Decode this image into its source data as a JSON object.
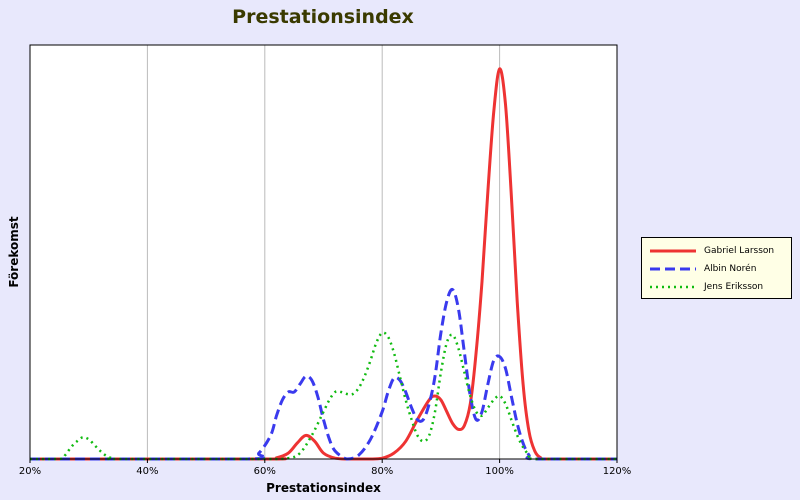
{
  "chart_data": {
    "type": "line",
    "title": "Prestationsindex",
    "xlabel": "Prestationsindex",
    "ylabel": "Förekomst",
    "xlim": [
      20,
      120
    ],
    "ylim": [
      0,
      100
    ],
    "x_ticks": [
      "20%",
      "40%",
      "60%",
      "80%",
      "100%",
      "120%"
    ],
    "grid": "vertical",
    "legend_position": "right",
    "series": [
      {
        "name": "Gabriel Larsson",
        "color": "#ee3333",
        "style": "solid",
        "x": [
          20,
          60,
          62,
          64,
          65.5,
          67,
          68.5,
          70,
          72,
          74,
          76,
          78,
          80,
          82,
          84,
          86,
          88,
          89,
          90,
          91,
          92,
          93,
          94,
          95,
          96,
          97,
          98,
          99,
          100,
          101,
          102,
          103,
          104,
          105,
          106,
          107,
          108,
          120
        ],
        "y": [
          0,
          0,
          0.3,
          1.5,
          4,
          6,
          4.5,
          1.5,
          0.2,
          0,
          0,
          0,
          0.2,
          1.5,
          4.5,
          10,
          15,
          16,
          15,
          12,
          9,
          7.5,
          8.5,
          14,
          27,
          45,
          68,
          88,
          99,
          90,
          67,
          40,
          19,
          7,
          2,
          0.3,
          0,
          0
        ]
      },
      {
        "name": "Albin Norén",
        "color": "#3a3aee",
        "style": "dashed",
        "x": [
          20,
          57,
          59,
          61,
          62,
          63,
          64,
          65,
          66,
          67,
          68,
          69,
          70,
          71,
          72,
          74,
          76,
          78,
          80,
          81,
          82,
          83,
          84,
          85,
          86,
          87,
          88,
          89,
          90,
          91,
          92,
          93,
          94,
          95,
          96,
          97,
          98,
          99,
          100,
          101,
          102,
          103,
          104,
          105,
          106,
          120
        ],
        "y": [
          0,
          0,
          1.5,
          6,
          11,
          15,
          17,
          17,
          19,
          21,
          20,
          16,
          10,
          5,
          2,
          0,
          1,
          5,
          12,
          17,
          20.5,
          20,
          17,
          13,
          10,
          10,
          14,
          21,
          32,
          40,
          43,
          38,
          27,
          16,
          10,
          12,
          19,
          25,
          26,
          23,
          16,
          9,
          4,
          1,
          0,
          0
        ]
      },
      {
        "name": "Jens Eriksson",
        "color": "#11bb11",
        "style": "dotted",
        "x": [
          20,
          25,
          26,
          27,
          28,
          29,
          30,
          31,
          32,
          33,
          34,
          35,
          60,
          64,
          66,
          68,
          70,
          71,
          72,
          73,
          74,
          75,
          76,
          77,
          78,
          79,
          80,
          81,
          82,
          83,
          84,
          85,
          86,
          87,
          88,
          89,
          90,
          91,
          92,
          93,
          94,
          95,
          96,
          97,
          98,
          99,
          100,
          101,
          102,
          103,
          104,
          105,
          106,
          120
        ],
        "y": [
          0,
          0,
          1,
          3,
          4.5,
          5.5,
          5,
          3.5,
          2,
          0.8,
          0.2,
          0,
          0,
          0.2,
          1.5,
          6,
          12,
          15,
          17,
          17,
          16.5,
          16.5,
          18,
          21,
          25,
          29.5,
          32,
          31,
          27,
          21,
          15,
          10,
          6,
          4.5,
          6,
          12,
          22,
          29.5,
          31.5,
          28,
          22,
          16,
          12,
          11,
          13,
          15,
          16,
          14,
          10,
          6,
          3,
          1,
          0,
          0
        ]
      }
    ]
  }
}
